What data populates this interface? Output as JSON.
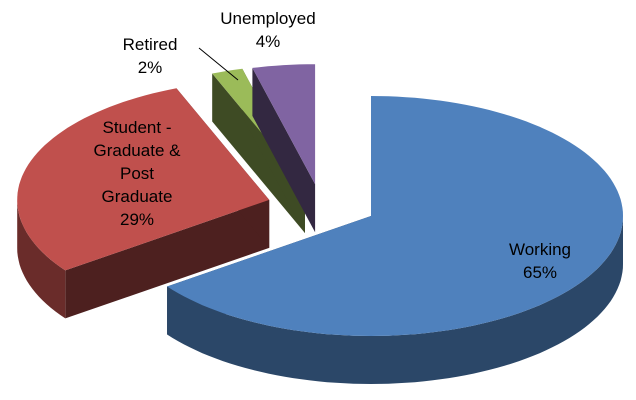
{
  "chart_data": {
    "type": "pie",
    "categories": [
      "Working",
      "Student - Graduate & Post Graduate",
      "Retired",
      "Unemployed"
    ],
    "values": [
      65,
      29,
      2,
      4
    ],
    "value_labels": [
      "65%",
      "29%",
      "2%",
      "4%"
    ],
    "colors": [
      "#4f81bd",
      "#c0504d",
      "#9bbb59",
      "#8064a2"
    ]
  }
}
